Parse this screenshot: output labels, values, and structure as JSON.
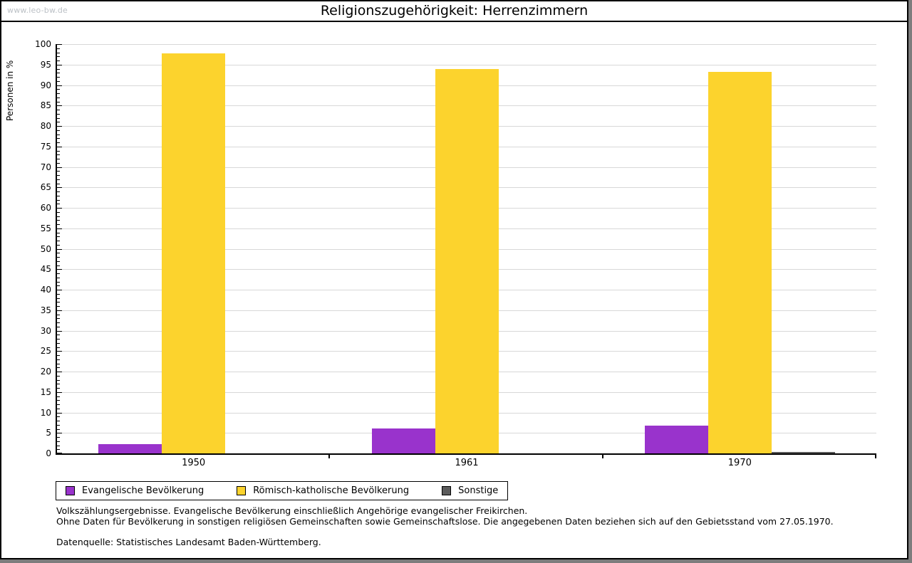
{
  "watermark": "www.leo-bw.de",
  "title": "Religionszugehörigkeit:  Herrenzimmern",
  "chart_data": {
    "type": "bar",
    "title": "Religionszugehörigkeit: Herrenzimmern",
    "categories": [
      "1950",
      "1961",
      "1970"
    ],
    "series": [
      {
        "name": "Evangelische Bevölkerung",
        "slug": "evangelische",
        "color": "#9933cc",
        "values": [
          2.3,
          6.1,
          6.7
        ]
      },
      {
        "name": "Römisch-katholische Bevölkerung",
        "slug": "katholische",
        "color": "#fcd32d",
        "values": [
          97.8,
          94.0,
          93.2
        ]
      },
      {
        "name": "Sonstige",
        "slug": "sonstige",
        "color": "#5b5b5b",
        "values": [
          0,
          0,
          0.4
        ]
      }
    ],
    "ylabel": "Personen in %",
    "ylim": [
      0,
      100
    ],
    "y_major_step": 5,
    "y_minor_step": 1,
    "grid": true,
    "legend_position": "bottom-left"
  },
  "footer": {
    "line1": "Volkszählungsergebnisse. Evangelische Bevölkerung einschließlich Angehörige evangelischer Freikirchen.",
    "line2": "Ohne Daten für Bevölkerung in sonstigen religiösen Gemeinschaften sowie Gemeinschaftslose. Die angegebenen Daten beziehen sich auf den Gebietsstand vom 27.05.1970.",
    "source": "Datenquelle: Statistisches Landesamt Baden-Württemberg."
  },
  "colors": {
    "grid": "#d8d8d8",
    "axis": "#000000",
    "watermark": "#bcc1c6",
    "frame_shadow": "#7d7d7d"
  }
}
